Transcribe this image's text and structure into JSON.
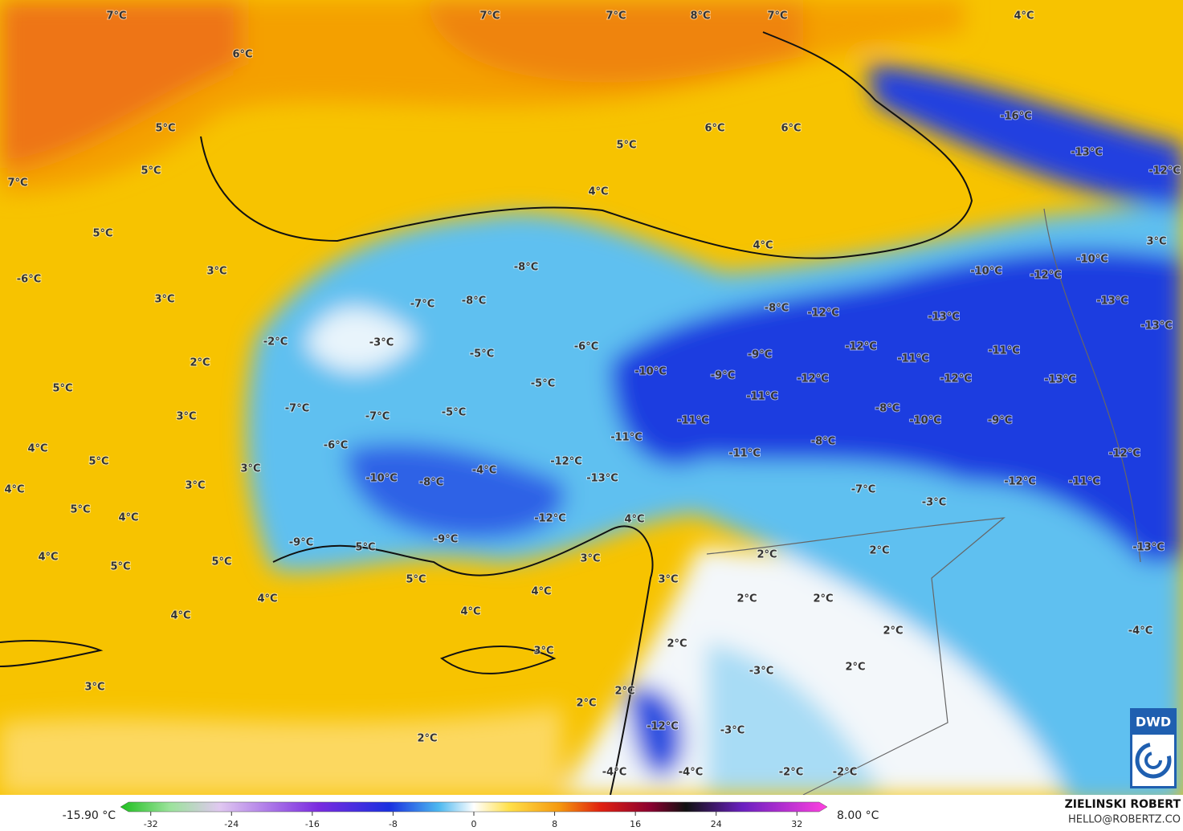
{
  "map": {
    "labels": [
      "7°C",
      "7°C",
      "7°C",
      "8°C",
      "7°C",
      "4°C",
      "6°C",
      "5°C",
      "6°C",
      "6°C",
      "-16°C",
      "5°C",
      "-13°C",
      "5°C",
      "-12°C",
      "7°C",
      "4°C",
      "5°C",
      "4°C",
      "3°C",
      "-10°C",
      "3°C",
      "-8°C",
      "-10°C",
      "-12°C",
      "-6°C",
      "3°C",
      "-7°C",
      "-8°C",
      "-8°C",
      "-12°C",
      "-13°C",
      "-13°C",
      "-13°C",
      "-2°C",
      "-3°C",
      "-6°C",
      "-5°C",
      "-12°C",
      "-9°C",
      "-11°C",
      "-11°C",
      "2°C",
      "-10°C",
      "-9°C",
      "-5°C",
      "-12°C",
      "-12°C",
      "-13°C",
      "5°C",
      "-11°C",
      "-7°C",
      "-5°C",
      "-8°C",
      "3°C",
      "-7°C",
      "-11°C",
      "-10°C",
      "-9°C",
      "-11°C",
      "-8°C",
      "-6°C",
      "4°C",
      "5°C",
      "-12°C",
      "-11°C",
      "-12°C",
      "3°C",
      "-4°C",
      "-10°C",
      "-8°C",
      "-13°C",
      "3°C",
      "4°C",
      "-12°C",
      "-11°C",
      "-7°C",
      "-3°C",
      "5°C",
      "4°C",
      "-12°C",
      "4°C",
      "-9°C",
      "-9°C",
      "5°C",
      "2°C",
      "2°C",
      "-13°C",
      "4°C",
      "5°C",
      "3°C",
      "5°C",
      "5°C",
      "3°C",
      "4°C",
      "4°C",
      "2°C",
      "2°C",
      "4°C",
      "4°C",
      "2°C",
      "-4°C",
      "2°C",
      "3°C",
      "2°C",
      "-3°C",
      "3°C",
      "2°C",
      "2°C",
      "-12°C",
      "-3°C",
      "2°C",
      "-2°C",
      "-2°C",
      "-4°C",
      "-4°C"
    ],
    "colorbar": {
      "min_label": "-15.90 °C",
      "max_label": "8.00 °C",
      "lim": [
        -35,
        35
      ],
      "ticks": [
        -32,
        -24,
        -16,
        -8,
        0,
        8,
        16,
        24,
        32
      ]
    },
    "author": "ZIELINSKI ROBERT",
    "contact": "HELLO@ROBERTZ.CO",
    "logo": "DWD"
  }
}
